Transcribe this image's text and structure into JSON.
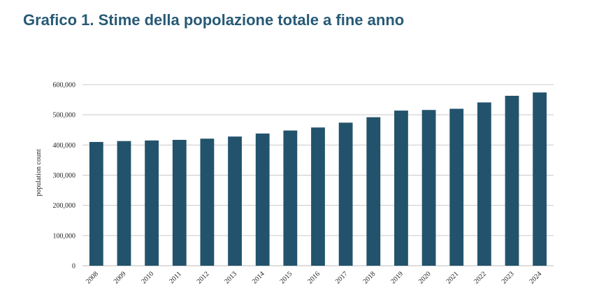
{
  "title": "Grafico 1. Stime della popolazione totale a fine anno",
  "colors": {
    "title": "#275a76",
    "bar": "#23536c",
    "grid": "#c9c9c9"
  },
  "chart_data": {
    "type": "bar",
    "categories": [
      "2008",
      "2009",
      "2010",
      "2011",
      "2012",
      "2013",
      "2014",
      "2015",
      "2016",
      "2017",
      "2018",
      "2019",
      "2020",
      "2021",
      "2022",
      "2023",
      "2024"
    ],
    "values": [
      410000,
      413000,
      415000,
      417000,
      421000,
      428000,
      438000,
      448000,
      458000,
      474000,
      492000,
      514000,
      516000,
      520000,
      541000,
      563000,
      574000
    ],
    "ylabel": "population count",
    "xlabel": "",
    "ylim": [
      0,
      600000
    ],
    "yticks": [
      0,
      100000,
      200000,
      300000,
      400000,
      500000,
      600000
    ],
    "ytick_labels": [
      "0",
      "100,000",
      "200,000",
      "300,000",
      "400,000",
      "500,000",
      "600,000"
    ],
    "grid": true,
    "legend": "none"
  }
}
